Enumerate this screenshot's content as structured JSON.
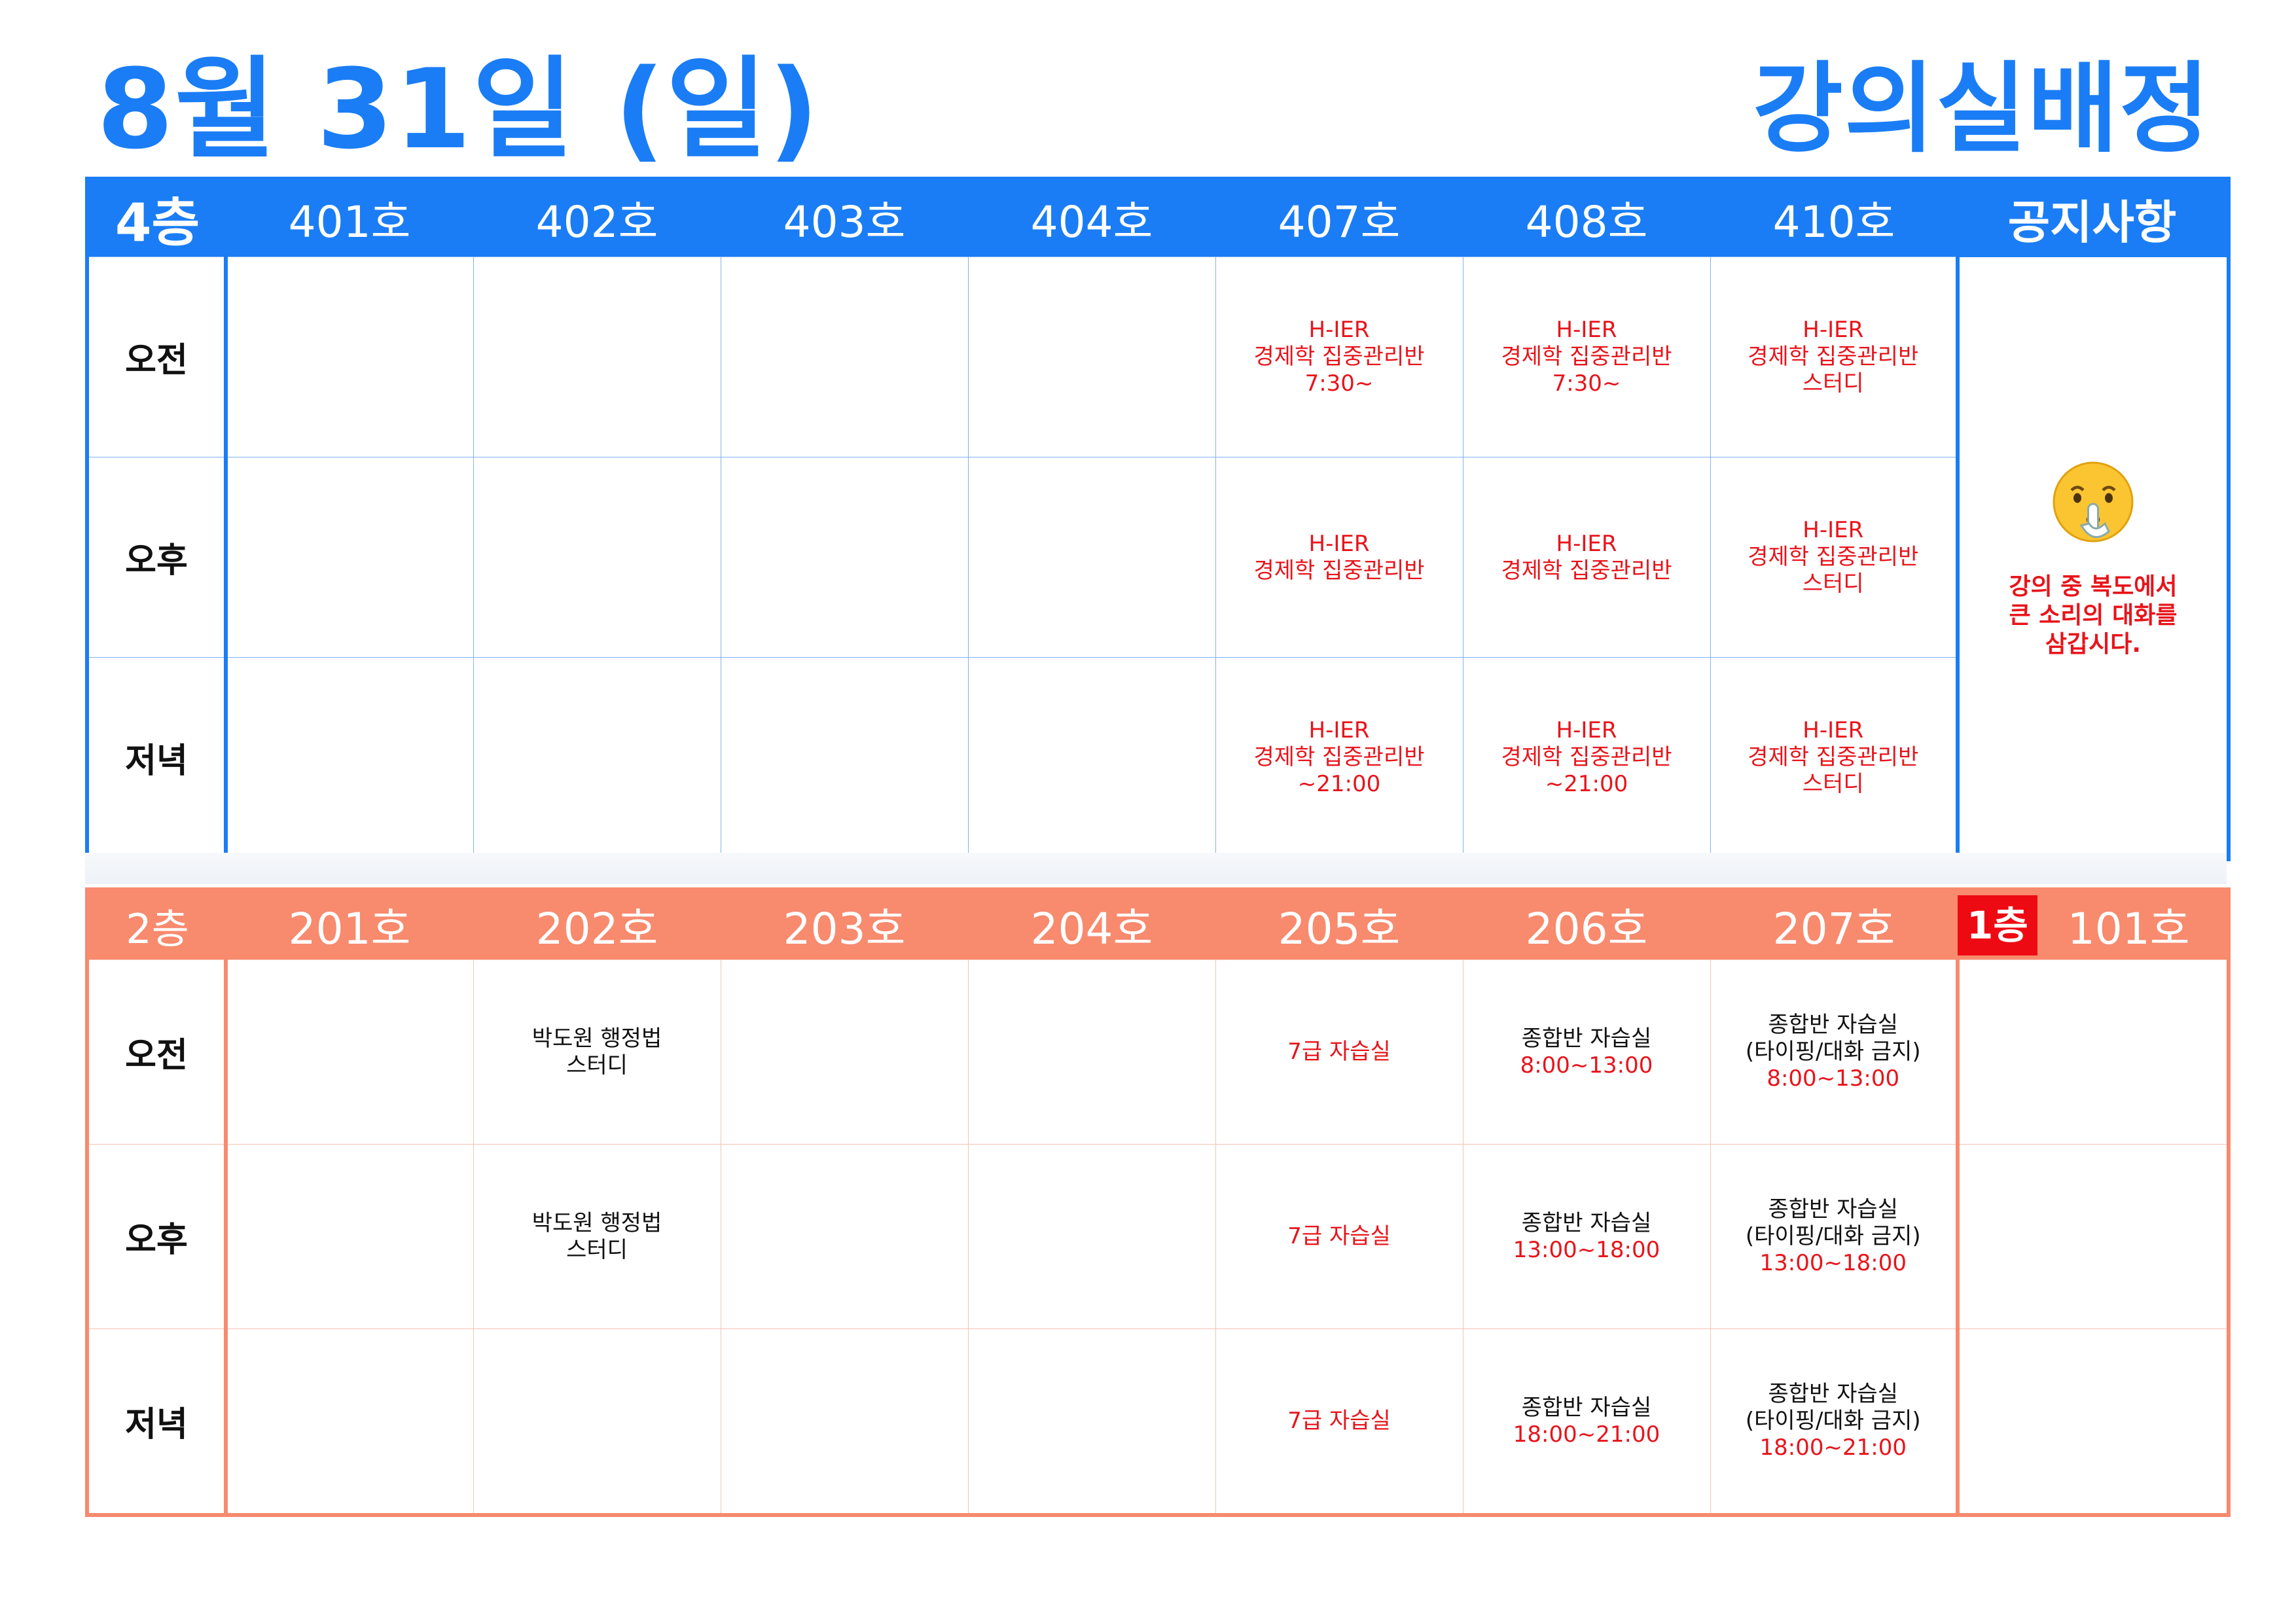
{
  "header": {
    "date": "8월 31일 (일)",
    "title": "강의실배정"
  },
  "floor4": {
    "label": "4층",
    "rooms": [
      "401호",
      "402호",
      "403호",
      "404호",
      "407호",
      "408호",
      "410호"
    ],
    "notice_header": "공지사항",
    "periods": [
      "오전",
      "오후",
      "저녁"
    ],
    "cells": {
      "r407": [
        [
          "H-IER",
          "경제학 집중관리반",
          "7:30~"
        ],
        [
          "H-IER",
          "경제학 집중관리반"
        ],
        [
          "H-IER",
          "경제학 집중관리반",
          "~21:00"
        ]
      ],
      "r408": [
        [
          "H-IER",
          "경제학 집중관리반",
          "7:30~"
        ],
        [
          "H-IER",
          "경제학 집중관리반"
        ],
        [
          "H-IER",
          "경제학 집중관리반",
          "~21:00"
        ]
      ],
      "r410": [
        [
          "H-IER",
          "경제학 집중관리반",
          "스터디"
        ],
        [
          "H-IER",
          "경제학 집중관리반",
          "스터디"
        ],
        [
          "H-IER",
          "경제학 집중관리반",
          "스터디"
        ]
      ]
    },
    "notice": {
      "icon": "shushing-face-icon",
      "lines": [
        "강의 중 복도에서",
        "큰 소리의 대화를",
        "삼갑시다."
      ]
    }
  },
  "floor2": {
    "label": "2층",
    "rooms": [
      "201호",
      "202호",
      "203호",
      "204호",
      "205호",
      "206호",
      "207호"
    ],
    "first_floor_badge": "1층",
    "room101": "101호",
    "periods": [
      "오전",
      "오후",
      "저녁"
    ],
    "cells": {
      "r202": [
        [
          "박도원 행정법",
          "스터디"
        ],
        [
          "박도원 행정법",
          "스터디"
        ],
        []
      ],
      "r205": [
        [
          "7급 자습실"
        ],
        [
          "7급 자습실"
        ],
        [
          "7급 자습실"
        ]
      ],
      "r206": [
        [
          "종합반 자습실",
          "8:00~13:00"
        ],
        [
          "종합반 자습실",
          "13:00~18:00"
        ],
        [
          "종합반 자습실",
          "18:00~21:00"
        ]
      ],
      "r207": [
        [
          "종합반 자습실",
          "(타이핑/대화 금지)",
          "8:00~13:00"
        ],
        [
          "종합반 자습실",
          "(타이핑/대화 금지)",
          "13:00~18:00"
        ],
        [
          "종합반 자습실",
          "(타이핑/대화 금지)",
          "18:00~21:00"
        ]
      ]
    }
  },
  "colors": {
    "accent_blue": "#1a7df5",
    "accent_salmon": "#f88a6e",
    "text_red": "#e8141b",
    "badge_red": "#ee0a12"
  }
}
